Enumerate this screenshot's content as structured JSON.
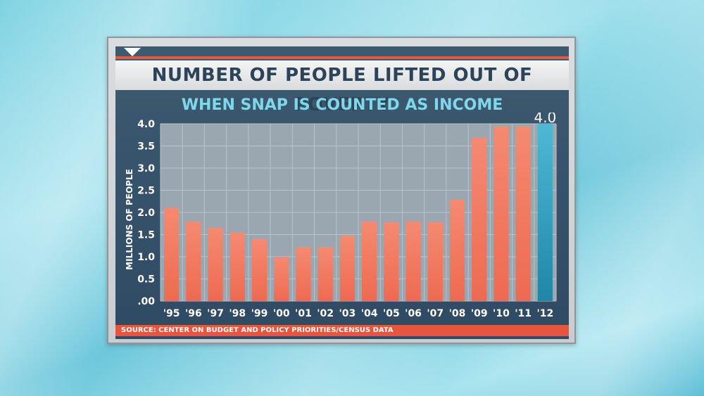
{
  "title": "NUMBER OF PEOPLE LIFTED OUT OF POVERTY",
  "subtitle": "WHEN SNAP IS COUNTED AS INCOME",
  "source": "SOURCE: CENTER ON BUDGET AND POLICY PRIORITIES/CENSUS DATA",
  "highlight_label": "4.0",
  "colors": {
    "bar": "#ee6a52",
    "bar_highlight": "#2fa3c4",
    "accent": "#e8553d",
    "title": "#2c4358",
    "subtitle": "#7fd7ea"
  },
  "chart_data": {
    "type": "bar",
    "title": "NUMBER OF PEOPLE LIFTED OUT OF POVERTY",
    "subtitle": "WHEN SNAP IS COUNTED AS INCOME",
    "xlabel": "",
    "ylabel": "MILLIONS OF PEOPLE",
    "ylim": [
      0,
      4.0
    ],
    "yticks": [
      ".00",
      "0.5",
      "1.0",
      "1.5",
      "2.0",
      "2.5",
      "3.0",
      "3.5",
      "4.0"
    ],
    "categories": [
      "'95",
      "'96",
      "'97",
      "'98",
      "'99",
      "'00",
      "'01",
      "'02",
      "'03",
      "'04",
      "'05",
      "'06",
      "'07",
      "'08",
      "'09",
      "'10",
      "'11",
      "'12"
    ],
    "values": [
      2.1,
      1.8,
      1.65,
      1.55,
      1.4,
      1.0,
      1.22,
      1.22,
      1.48,
      1.8,
      1.78,
      1.8,
      1.78,
      2.3,
      3.7,
      3.95,
      3.95,
      4.0
    ],
    "highlight_index": 17,
    "grid": true
  }
}
